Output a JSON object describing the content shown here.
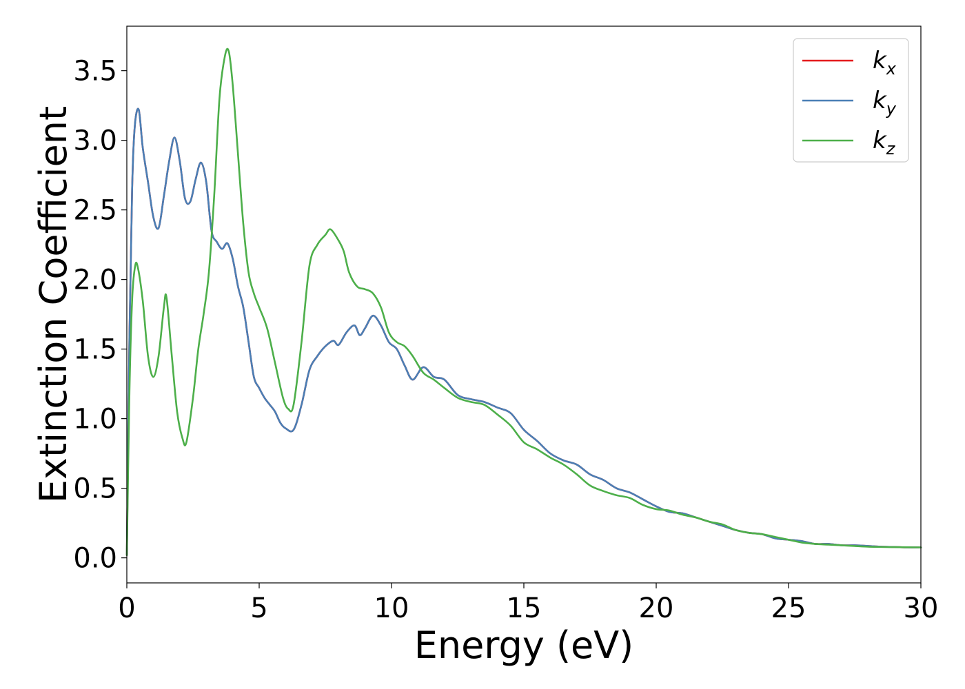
{
  "chart_data": {
    "type": "line",
    "xlabel": "Energy (eV)",
    "ylabel": "Extinction Coefficient",
    "xlim": [
      0,
      30
    ],
    "ylim": [
      -0.18,
      3.82
    ],
    "xticks": [
      0,
      5,
      10,
      15,
      20,
      25,
      30
    ],
    "yticks": [
      0.0,
      0.5,
      1.0,
      1.5,
      2.0,
      2.5,
      3.0,
      3.5
    ],
    "xtick_labels": [
      "0",
      "5",
      "10",
      "15",
      "20",
      "25",
      "30"
    ],
    "ytick_labels": [
      "0.0",
      "0.5",
      "1.0",
      "1.5",
      "2.0",
      "2.5",
      "3.0",
      "3.5"
    ],
    "grid": false,
    "legend_position": "top-right",
    "series": [
      {
        "name": "k_x",
        "label_base": "k",
        "label_sub": "x",
        "color": "#e41a1c",
        "x": [
          0,
          0.1,
          0.2,
          0.3,
          0.45,
          0.6,
          0.8,
          1.0,
          1.2,
          1.4,
          1.6,
          1.8,
          2.0,
          2.2,
          2.4,
          2.6,
          2.8,
          3.0,
          3.2,
          3.4,
          3.6,
          3.8,
          4.0,
          4.2,
          4.4,
          4.6,
          4.8,
          5.0,
          5.2,
          5.4,
          5.6,
          5.8,
          6.0,
          6.3,
          6.6,
          6.9,
          7.2,
          7.5,
          7.8,
          8.0,
          8.3,
          8.6,
          8.8,
          9.0,
          9.3,
          9.6,
          9.9,
          10.2,
          10.5,
          10.8,
          11.2,
          11.6,
          12.0,
          12.5,
          13.0,
          13.5,
          14.0,
          14.5,
          15.0,
          15.5,
          16.0,
          16.5,
          17.0,
          17.5,
          18.0,
          18.5,
          19.0,
          19.5,
          20.0,
          20.5,
          21.0,
          21.5,
          22.0,
          22.5,
          23.0,
          23.5,
          24.0,
          24.5,
          25.0,
          25.5,
          26.0,
          26.5,
          27.0,
          27.5,
          28.0,
          28.5,
          29.0,
          29.5,
          30.0
        ],
        "y": [
          0.02,
          1.6,
          2.65,
          3.1,
          3.22,
          2.95,
          2.7,
          2.45,
          2.37,
          2.6,
          2.85,
          3.02,
          2.85,
          2.58,
          2.56,
          2.72,
          2.84,
          2.7,
          2.35,
          2.27,
          2.22,
          2.26,
          2.15,
          1.95,
          1.8,
          1.55,
          1.3,
          1.22,
          1.15,
          1.1,
          1.05,
          0.97,
          0.93,
          0.92,
          1.1,
          1.35,
          1.45,
          1.52,
          1.56,
          1.53,
          1.62,
          1.67,
          1.6,
          1.65,
          1.74,
          1.67,
          1.55,
          1.5,
          1.38,
          1.28,
          1.37,
          1.3,
          1.28,
          1.17,
          1.14,
          1.12,
          1.08,
          1.04,
          0.92,
          0.84,
          0.75,
          0.7,
          0.67,
          0.6,
          0.56,
          0.5,
          0.47,
          0.42,
          0.37,
          0.33,
          0.32,
          0.29,
          0.26,
          0.23,
          0.2,
          0.18,
          0.17,
          0.14,
          0.13,
          0.12,
          0.1,
          0.1,
          0.09,
          0.09,
          0.085,
          0.08,
          0.078,
          0.075,
          0.075
        ]
      },
      {
        "name": "k_y",
        "label_base": "k",
        "label_sub": "y",
        "color": "#4a7fb5",
        "x": [
          0,
          0.1,
          0.2,
          0.3,
          0.45,
          0.6,
          0.8,
          1.0,
          1.2,
          1.4,
          1.6,
          1.8,
          2.0,
          2.2,
          2.4,
          2.6,
          2.8,
          3.0,
          3.2,
          3.4,
          3.6,
          3.8,
          4.0,
          4.2,
          4.4,
          4.6,
          4.8,
          5.0,
          5.2,
          5.4,
          5.6,
          5.8,
          6.0,
          6.3,
          6.6,
          6.9,
          7.2,
          7.5,
          7.8,
          8.0,
          8.3,
          8.6,
          8.8,
          9.0,
          9.3,
          9.6,
          9.9,
          10.2,
          10.5,
          10.8,
          11.2,
          11.6,
          12.0,
          12.5,
          13.0,
          13.5,
          14.0,
          14.5,
          15.0,
          15.5,
          16.0,
          16.5,
          17.0,
          17.5,
          18.0,
          18.5,
          19.0,
          19.5,
          20.0,
          20.5,
          21.0,
          21.5,
          22.0,
          22.5,
          23.0,
          23.5,
          24.0,
          24.5,
          25.0,
          25.5,
          26.0,
          26.5,
          27.0,
          27.5,
          28.0,
          28.5,
          29.0,
          29.5,
          30.0
        ],
        "y": [
          0.02,
          1.6,
          2.65,
          3.1,
          3.22,
          2.95,
          2.7,
          2.45,
          2.37,
          2.6,
          2.85,
          3.02,
          2.85,
          2.58,
          2.56,
          2.72,
          2.84,
          2.7,
          2.35,
          2.27,
          2.22,
          2.26,
          2.15,
          1.95,
          1.8,
          1.55,
          1.3,
          1.22,
          1.15,
          1.1,
          1.05,
          0.97,
          0.93,
          0.92,
          1.1,
          1.35,
          1.45,
          1.52,
          1.56,
          1.53,
          1.62,
          1.67,
          1.6,
          1.65,
          1.74,
          1.67,
          1.55,
          1.5,
          1.38,
          1.28,
          1.37,
          1.3,
          1.28,
          1.17,
          1.14,
          1.12,
          1.08,
          1.04,
          0.92,
          0.84,
          0.75,
          0.7,
          0.67,
          0.6,
          0.56,
          0.5,
          0.47,
          0.42,
          0.37,
          0.33,
          0.32,
          0.29,
          0.26,
          0.23,
          0.2,
          0.18,
          0.17,
          0.14,
          0.13,
          0.12,
          0.1,
          0.1,
          0.09,
          0.09,
          0.085,
          0.08,
          0.078,
          0.075,
          0.075
        ]
      },
      {
        "name": "k_z",
        "label_base": "k",
        "label_sub": "z",
        "color": "#4daf4a",
        "x": [
          0,
          0.1,
          0.2,
          0.3,
          0.4,
          0.6,
          0.8,
          1.0,
          1.2,
          1.4,
          1.5,
          1.7,
          1.9,
          2.1,
          2.25,
          2.5,
          2.7,
          2.9,
          3.1,
          3.3,
          3.5,
          3.7,
          3.85,
          4.0,
          4.2,
          4.4,
          4.6,
          4.8,
          5.0,
          5.3,
          5.6,
          5.9,
          6.1,
          6.3,
          6.6,
          6.9,
          7.2,
          7.5,
          7.7,
          8.0,
          8.2,
          8.4,
          8.7,
          9.0,
          9.3,
          9.6,
          9.9,
          10.2,
          10.5,
          10.8,
          11.2,
          11.6,
          12.0,
          12.5,
          13.0,
          13.5,
          14.0,
          14.5,
          15.0,
          15.5,
          16.0,
          16.5,
          17.0,
          17.5,
          18.0,
          18.5,
          19.0,
          19.5,
          20.0,
          20.5,
          21.0,
          21.5,
          22.0,
          22.5,
          23.0,
          23.5,
          24.0,
          24.5,
          25.0,
          25.5,
          26.0,
          26.5,
          27.0,
          27.5,
          28.0,
          28.5,
          29.0,
          29.5,
          30.0
        ],
        "y": [
          0.02,
          1.2,
          1.85,
          2.08,
          2.1,
          1.85,
          1.45,
          1.3,
          1.45,
          1.8,
          1.87,
          1.45,
          1.05,
          0.86,
          0.83,
          1.15,
          1.5,
          1.75,
          2.05,
          2.6,
          3.3,
          3.6,
          3.64,
          3.4,
          2.9,
          2.4,
          2.05,
          1.9,
          1.8,
          1.65,
          1.4,
          1.15,
          1.07,
          1.1,
          1.55,
          2.1,
          2.25,
          2.32,
          2.36,
          2.28,
          2.2,
          2.05,
          1.95,
          1.93,
          1.9,
          1.8,
          1.62,
          1.55,
          1.52,
          1.45,
          1.33,
          1.28,
          1.22,
          1.15,
          1.12,
          1.1,
          1.03,
          0.95,
          0.83,
          0.78,
          0.72,
          0.67,
          0.6,
          0.52,
          0.48,
          0.45,
          0.43,
          0.38,
          0.35,
          0.34,
          0.31,
          0.29,
          0.26,
          0.24,
          0.2,
          0.18,
          0.17,
          0.15,
          0.13,
          0.11,
          0.1,
          0.095,
          0.09,
          0.085,
          0.08,
          0.078,
          0.077,
          0.076,
          0.075
        ]
      }
    ]
  }
}
